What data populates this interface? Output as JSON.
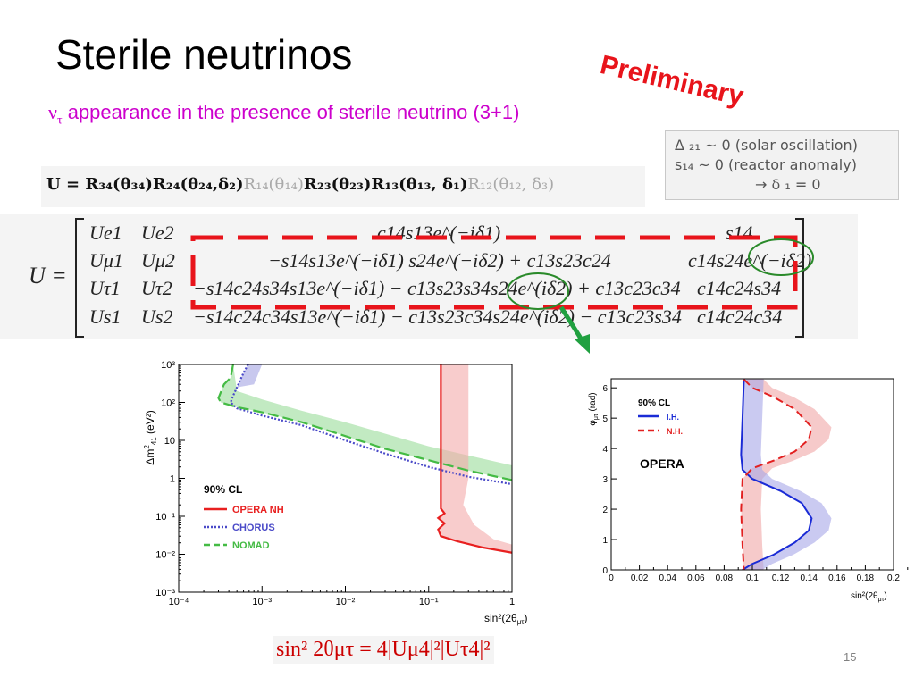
{
  "slide": {
    "title": "Sterile neutrinos",
    "stamp": "Preliminary",
    "subtitle_symbol": "ν",
    "subtitle_symbol_sub": "τ",
    "subtitle_text": " appearance in the presence of sterile neutrino (3+1)",
    "page_number": "15",
    "colors": {
      "subtitle": "#cc00cc",
      "stamp": "#e8141b",
      "highlight_box": "#e8141b",
      "circle": "#2a8a2a",
      "arrow": "#20a040"
    }
  },
  "notes": {
    "line1": "Δ ₂₁ ~ 0 (solar oscillation)",
    "line2": "s₁₄ ~ 0 (reactor anomaly)",
    "line3": "→ δ ₁ = 0"
  },
  "equation_u": {
    "bold_part": "U = R₃₄(θ₃₄)R₂₄(θ₂₄,δ₂)",
    "gray_part1": "R₁₄(θ₁₄)",
    "bold_part2": "R₂₃(θ₂₃)R₁₃(θ₁₃, δ₁)",
    "gray_part2": "R₁₂(θ₁₂, δ₃)"
  },
  "matrix": {
    "lhs": "U =",
    "rows": [
      [
        "Ue1",
        "Ue2",
        "c14s13e^(−iδ1)",
        "s14"
      ],
      [
        "Uμ1",
        "Uμ2",
        "−s14s13e^(−iδ1) s24e^(−iδ2) + c13s23c24",
        "c14s24e^(−iδ2)"
      ],
      [
        "Uτ1",
        "Uτ2",
        "−s14c24s34s13e^(−iδ1) − c13s23s34s24e^(iδ2) + c13c23c34",
        "c14c24s34"
      ],
      [
        "Us1",
        "Us2",
        "−s14c24c34s13e^(−iδ1) − c13s23c34s24e^(iδ2) − c13c23s34",
        "c14c24c34"
      ]
    ]
  },
  "formula": "sin² 2θμτ = 4|Uμ4|²|Uτ4|²",
  "chart_data": [
    {
      "type": "line",
      "x_label": "sin²(2θμτ)",
      "y_label": "Δm²41 (eV²)",
      "x_scale": "log",
      "y_scale": "log",
      "xlim": [
        0.0001,
        1
      ],
      "ylim": [
        0.001,
        1000
      ],
      "x_ticks": [
        "10⁻⁴",
        "10⁻³",
        "10⁻²",
        "10⁻¹",
        "1"
      ],
      "y_ticks": [
        "10⁻³",
        "10⁻²",
        "10⁻¹",
        "1",
        "10",
        "10²",
        "10³"
      ],
      "legend_title": "90% CL",
      "legend_position": "left-middle",
      "series": [
        {
          "name": "OPERA NH",
          "color": "#e82020",
          "style": "solid",
          "points": [
            [
              0.14,
              1000
            ],
            [
              0.14,
              2
            ],
            [
              0.14,
              0.16
            ],
            [
              0.155,
              0.12
            ],
            [
              0.13,
              0.09
            ],
            [
              0.155,
              0.065
            ],
            [
              0.13,
              0.045
            ],
            [
              0.14,
              0.03
            ],
            [
              0.22,
              0.022
            ],
            [
              0.45,
              0.015
            ],
            [
              1,
              0.011
            ]
          ]
        },
        {
          "name": "CHORUS",
          "color": "#4a4ac8",
          "style": "dotted",
          "points": [
            [
              0.00068,
              1000
            ],
            [
              0.0006,
              600
            ],
            [
              0.00045,
              150
            ],
            [
              0.00042,
              100
            ],
            [
              0.0005,
              70
            ],
            [
              0.001,
              45
            ],
            [
              0.003,
              25
            ],
            [
              0.01,
              10
            ],
            [
              0.03,
              4.5
            ],
            [
              0.1,
              2
            ],
            [
              0.3,
              1.1
            ],
            [
              1,
              0.7
            ]
          ]
        },
        {
          "name": "NOMAD",
          "color": "#44bb44",
          "style": "dashed",
          "points": [
            [
              0.00045,
              1000
            ],
            [
              0.00042,
              450
            ],
            [
              0.00035,
              300
            ],
            [
              0.0003,
              130
            ],
            [
              0.00032,
              100
            ],
            [
              0.0005,
              75
            ],
            [
              0.001,
              55
            ],
            [
              0.003,
              30
            ],
            [
              0.01,
              13
            ],
            [
              0.03,
              6
            ],
            [
              0.1,
              3
            ],
            [
              0.3,
              1.6
            ],
            [
              1,
              0.9
            ]
          ]
        }
      ]
    },
    {
      "type": "line",
      "title": "OPERA",
      "x_label": "sin²(2θμτ)",
      "y_label": "φμτ (rad)",
      "xlim": [
        0,
        0.2
      ],
      "ylim": [
        0,
        6.3
      ],
      "x_ticks": [
        "0",
        "0.02",
        "0.04",
        "0.06",
        "0.08",
        "0.1",
        "0.12",
        "0.14",
        "0.16",
        "0.18",
        "0.2"
      ],
      "y_ticks": [
        "0",
        "1",
        "2",
        "3",
        "4",
        "5",
        "6"
      ],
      "legend_title": "90% CL",
      "legend_position": "top-left",
      "series": [
        {
          "name": "I.H.",
          "color": "#1a2bd6",
          "style": "solid",
          "points": [
            [
              0.094,
              6.28
            ],
            [
              0.093,
              5.0
            ],
            [
              0.092,
              3.8
            ],
            [
              0.093,
              3.3
            ],
            [
              0.1,
              3.0
            ],
            [
              0.12,
              2.6
            ],
            [
              0.135,
              2.2
            ],
            [
              0.142,
              1.7
            ],
            [
              0.14,
              1.3
            ],
            [
              0.13,
              0.9
            ],
            [
              0.115,
              0.5
            ],
            [
              0.1,
              0.2
            ],
            [
              0.093,
              0
            ]
          ]
        },
        {
          "name": "N.H.",
          "color": "#e22020",
          "style": "dashed",
          "points": [
            [
              0.094,
              6.28
            ],
            [
              0.1,
              6.0
            ],
            [
              0.115,
              5.7
            ],
            [
              0.13,
              5.3
            ],
            [
              0.142,
              4.7
            ],
            [
              0.14,
              4.3
            ],
            [
              0.13,
              3.9
            ],
            [
              0.115,
              3.6
            ],
            [
              0.1,
              3.35
            ],
            [
              0.093,
              3.0
            ],
            [
              0.092,
              2.0
            ],
            [
              0.093,
              0.8
            ],
            [
              0.094,
              0
            ]
          ]
        }
      ]
    }
  ]
}
